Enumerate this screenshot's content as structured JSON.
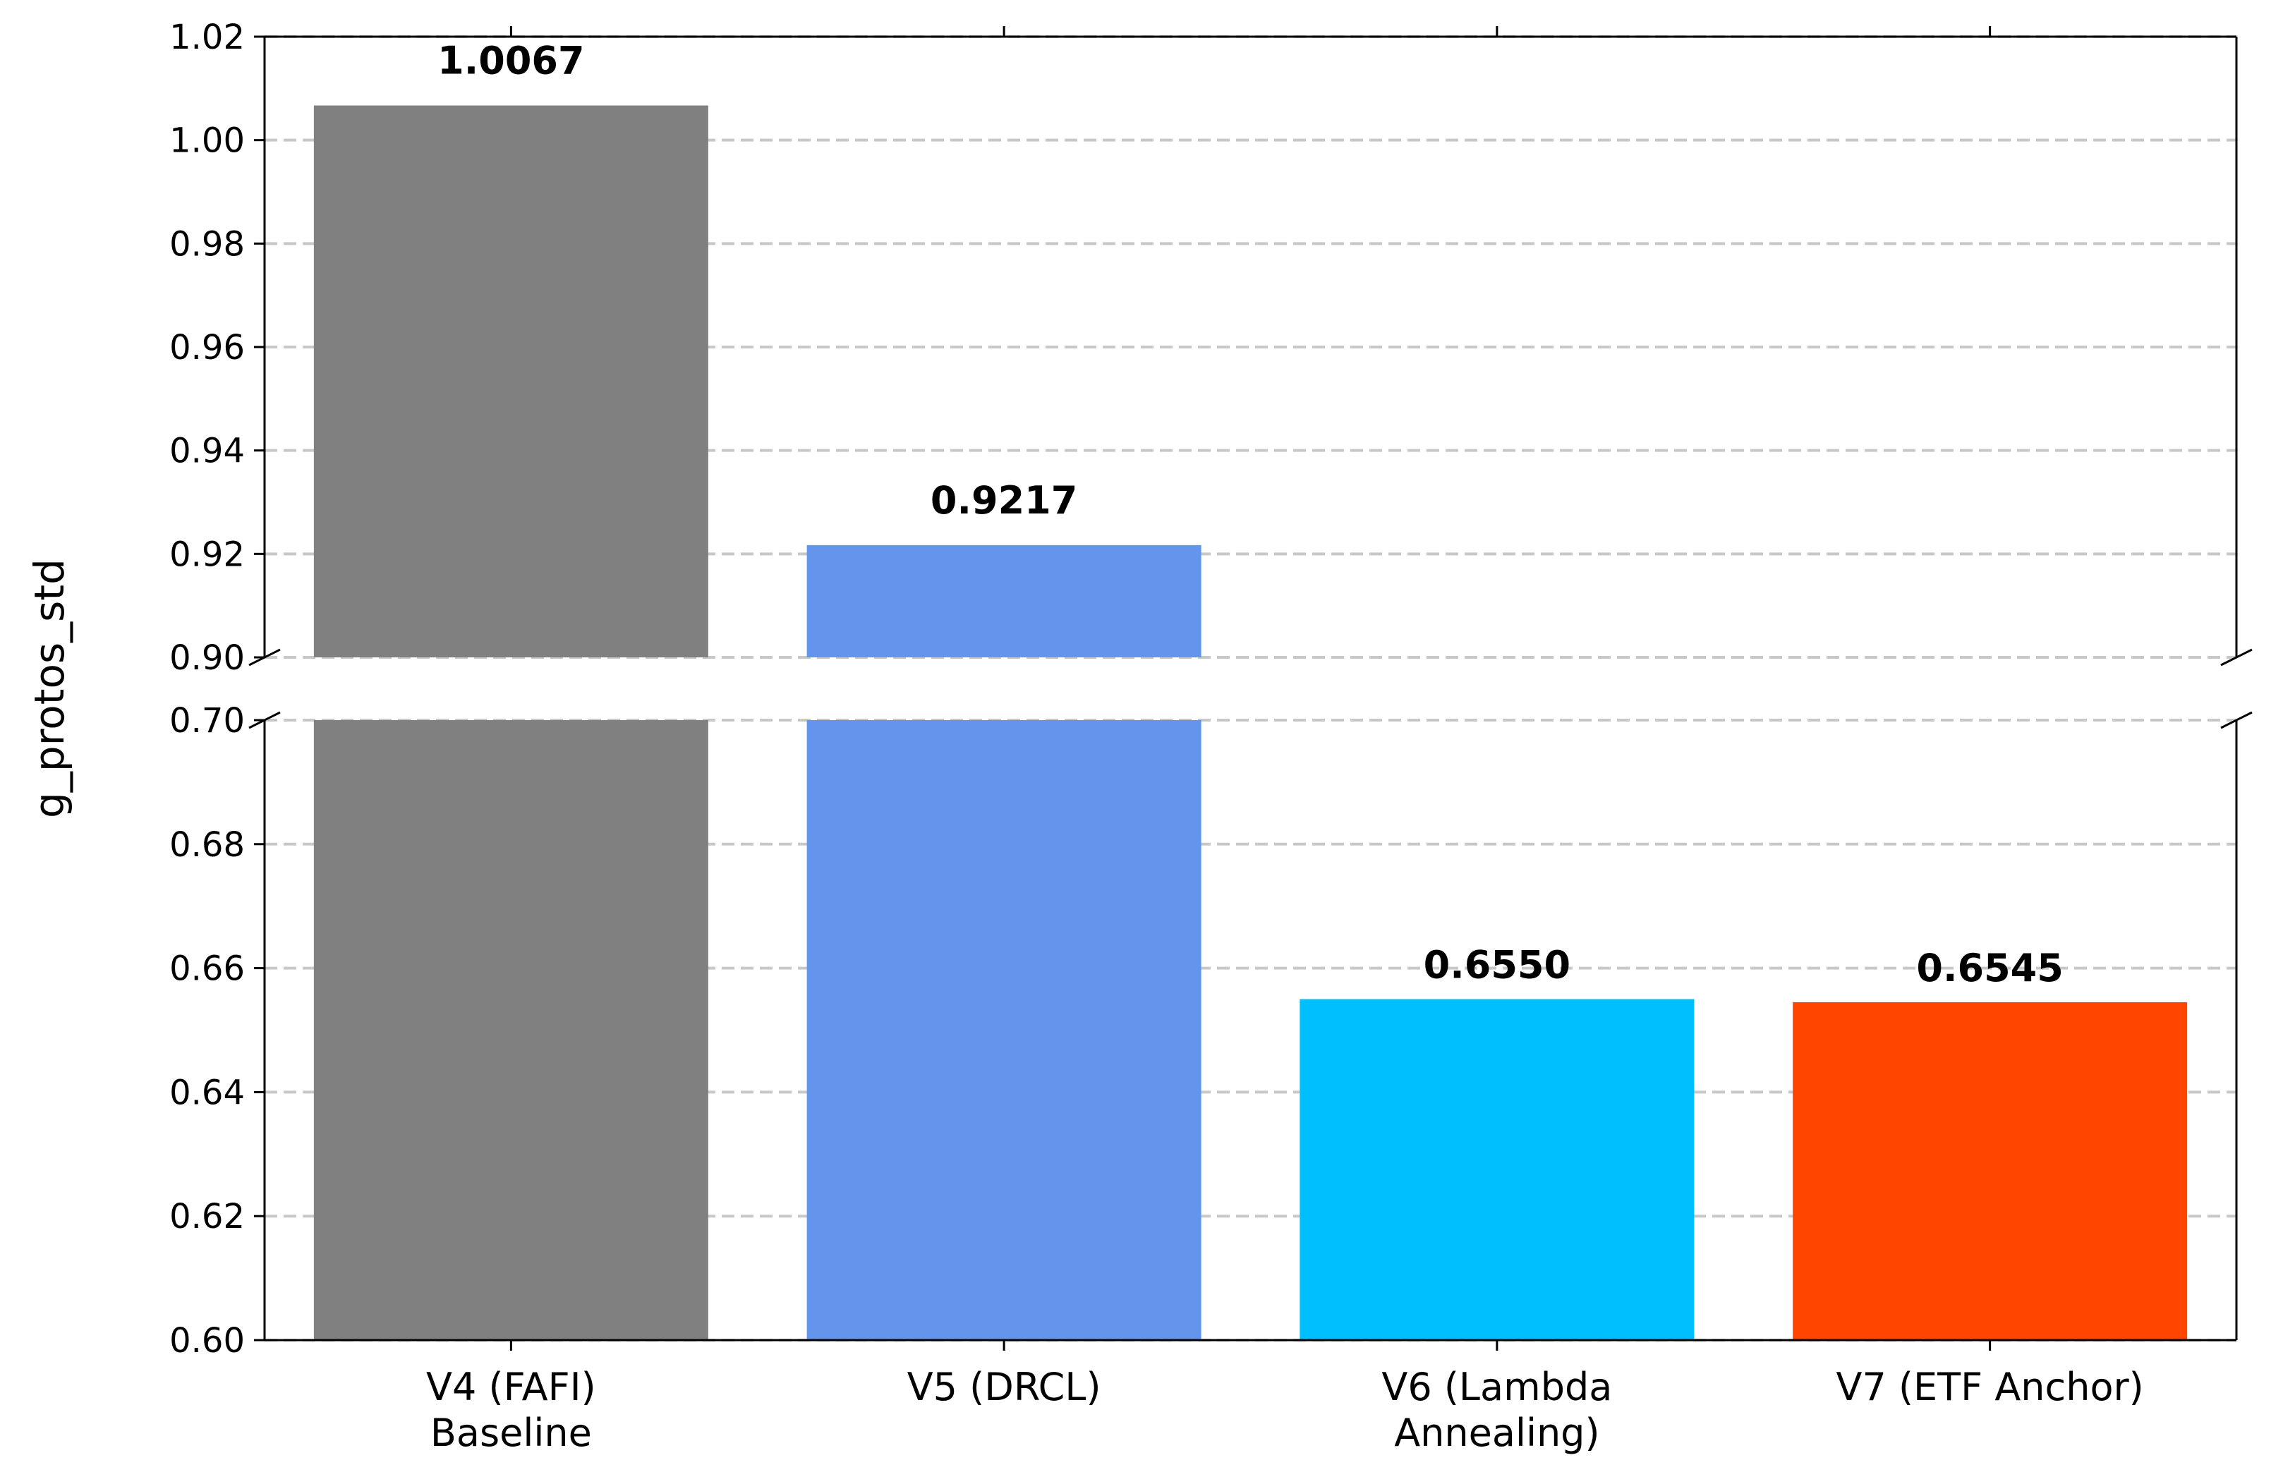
{
  "chart_data": {
    "type": "bar",
    "broken_axis": true,
    "ylabel": "g_protos_std",
    "xlabel": "",
    "categories": [
      "V4 (FAFI)\nBaseline",
      "V5 (DRCL)",
      "V6 (Lambda\nAnnealing)",
      "V7 (ETF Anchor)"
    ],
    "values": [
      1.0067,
      0.9217,
      0.655,
      0.6545
    ],
    "value_labels": [
      "1.0067",
      "0.9217",
      "0.6550",
      "0.6545"
    ],
    "colors": [
      "#808080",
      "#6495ED",
      "#00BFFF",
      "#FF4500"
    ],
    "upper_ylim": [
      0.9,
      1.02
    ],
    "upper_ticks": [
      "0.90",
      "0.92",
      "0.94",
      "0.96",
      "0.98",
      "1.00",
      "1.02"
    ],
    "lower_ylim": [
      0.6,
      0.7
    ],
    "lower_ticks": [
      "0.60",
      "0.62",
      "0.64",
      "0.66",
      "0.68",
      "0.70"
    ],
    "grid": "y-dashed",
    "legend": "none"
  }
}
